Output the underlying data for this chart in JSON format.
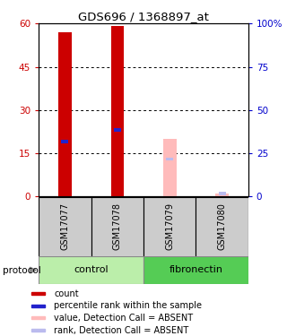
{
  "title": "GDS696 / 1368897_at",
  "samples": [
    "GSM17077",
    "GSM17078",
    "GSM17079",
    "GSM17080"
  ],
  "bar_values": [
    57,
    59,
    20,
    1
  ],
  "bar_colors": [
    "#cc0000",
    "#cc0000",
    "#ffbbbb",
    "#ffbbbb"
  ],
  "rank_values": [
    19,
    23,
    13,
    1
  ],
  "rank_colors": [
    "#2222cc",
    "#2222cc",
    "#bbbbee",
    "#bbbbee"
  ],
  "bar_width": 0.25,
  "ylim_left": [
    0,
    60
  ],
  "ylim_right": [
    0,
    100
  ],
  "yticks_left": [
    0,
    15,
    30,
    45,
    60
  ],
  "ytick_labels_left": [
    "0",
    "15",
    "30",
    "45",
    "60"
  ],
  "yticks_right": [
    0,
    25,
    50,
    75,
    100
  ],
  "ytick_labels_right": [
    "0",
    "25",
    "50",
    "75",
    "100%"
  ],
  "left_axis_color": "#cc0000",
  "right_axis_color": "#0000cc",
  "legend_items": [
    {
      "label": "count",
      "color": "#cc0000"
    },
    {
      "label": "percentile rank within the sample",
      "color": "#2222cc"
    },
    {
      "label": "value, Detection Call = ABSENT",
      "color": "#ffbbbb"
    },
    {
      "label": "rank, Detection Call = ABSENT",
      "color": "#bbbbee"
    }
  ],
  "protocol_label": "protocol",
  "control_color": "#bbeeaa",
  "fibronectin_color": "#55cc55",
  "sample_bg_color": "#cccccc",
  "background_color": "#ffffff"
}
